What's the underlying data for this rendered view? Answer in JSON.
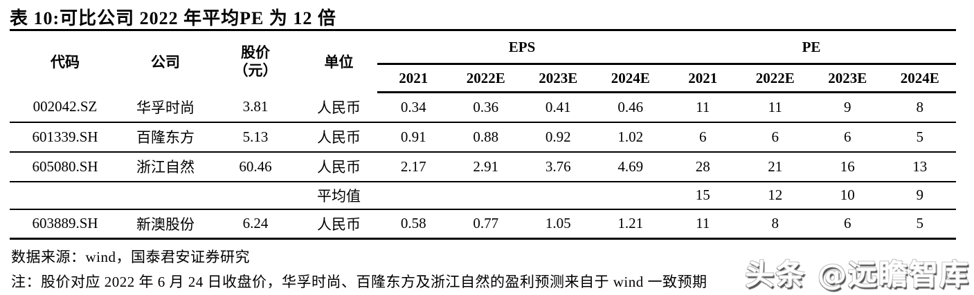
{
  "title": "表 10:可比公司 2022 年平均PE 为 12 倍",
  "table": {
    "headers": {
      "code": "代码",
      "company": "公司",
      "price_line1": "股价",
      "price_line2": "（元）",
      "unit": "单位",
      "eps_group": "EPS",
      "pe_group": "PE",
      "years": [
        "2021",
        "2022E",
        "2023E",
        "2024E"
      ]
    },
    "rows": [
      {
        "code": "002042.SZ",
        "company": "华孚时尚",
        "price": "3.81",
        "unit": "人民币",
        "eps": [
          "0.34",
          "0.36",
          "0.41",
          "0.46"
        ],
        "pe": [
          "11",
          "11",
          "9",
          "8"
        ]
      },
      {
        "code": "601339.SH",
        "company": "百隆东方",
        "price": "5.13",
        "unit": "人民币",
        "eps": [
          "0.91",
          "0.88",
          "0.92",
          "1.02"
        ],
        "pe": [
          "6",
          "6",
          "6",
          "5"
        ]
      },
      {
        "code": "605080.SH",
        "company": "浙江自然",
        "price": "60.46",
        "unit": "人民币",
        "eps": [
          "2.17",
          "2.91",
          "3.76",
          "4.69"
        ],
        "pe": [
          "28",
          "21",
          "16",
          "13"
        ]
      }
    ],
    "average_row": {
      "label": "平均值",
      "pe": [
        "15",
        "12",
        "10",
        "9"
      ]
    },
    "extra_row": {
      "code": "603889.SH",
      "company": "新澳股份",
      "price": "6.24",
      "unit": "人民币",
      "eps": [
        "0.58",
        "0.77",
        "1.05",
        "1.21"
      ],
      "pe": [
        "11",
        "8",
        "6",
        "5"
      ]
    }
  },
  "footer": {
    "source": "数据来源：wind，国泰君安证券研究",
    "note": "注：股价对应 2022 年 6 月 24 日收盘价，华孚时尚、百隆东方及浙江自然的盈利预测来自于 wind 一致预期"
  },
  "watermark": "头条 @远瞻智库",
  "colors": {
    "text": "#000000",
    "background": "#ffffff",
    "rule": "#000000"
  }
}
